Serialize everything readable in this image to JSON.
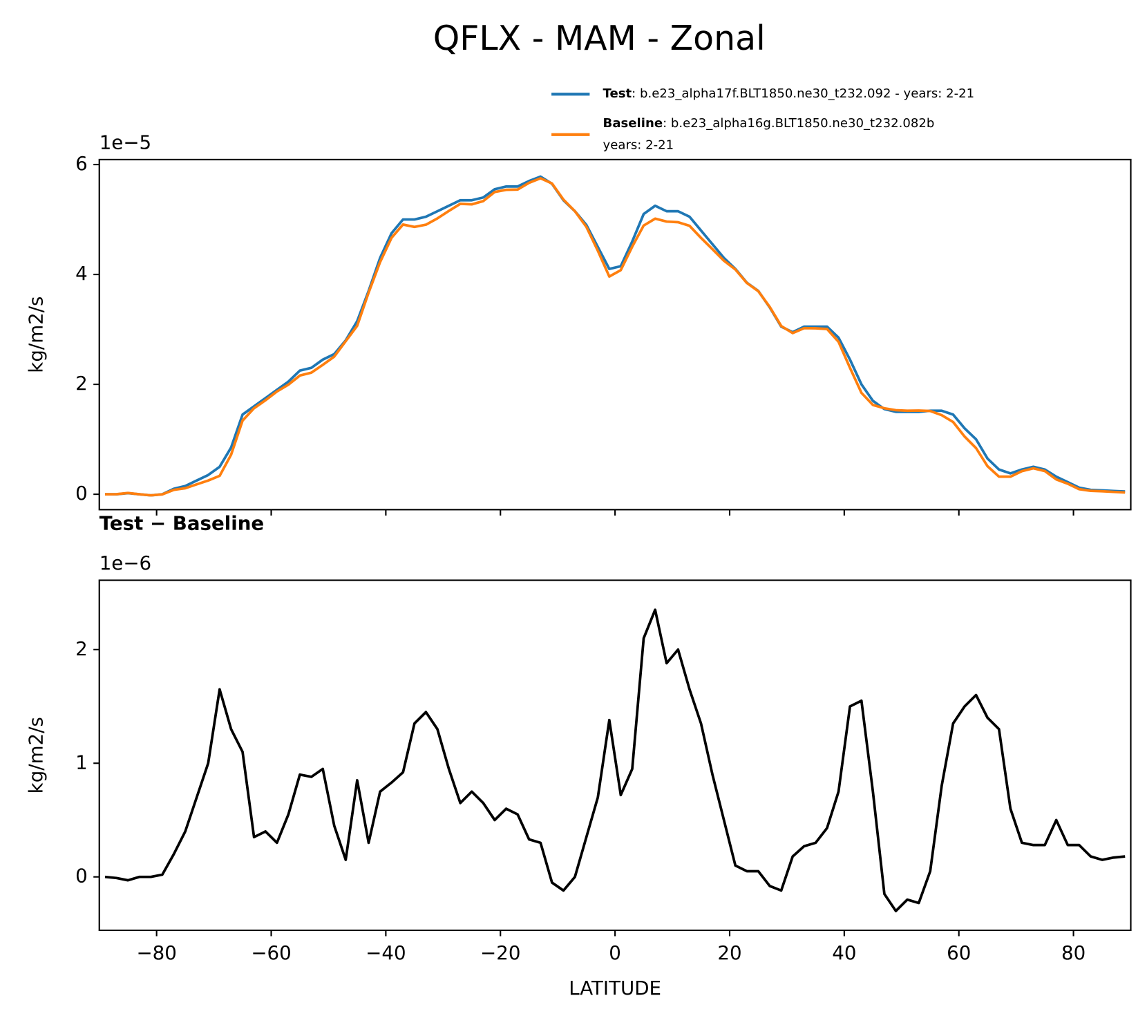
{
  "title": "QFLX - MAM - Zonal",
  "chart_data": [
    {
      "type": "line",
      "ylabel": "kg/m2/s",
      "offset_label": "1e−5",
      "legend_loc": "upper right",
      "xlim": [
        -90,
        90
      ],
      "ylim": [
        -0.28,
        6.09
      ],
      "xticks": [
        -80,
        -60,
        -40,
        -20,
        0,
        20,
        40,
        60,
        80
      ],
      "yticks": [
        0,
        2,
        4,
        6
      ],
      "x": [
        -89,
        -87,
        -85,
        -83,
        -81,
        -79,
        -77,
        -75,
        -73,
        -71,
        -69,
        -67,
        -65,
        -63,
        -61,
        -59,
        -57,
        -55,
        -53,
        -51,
        -49,
        -47,
        -45,
        -43,
        -41,
        -39,
        -37,
        -35,
        -33,
        -31,
        -29,
        -27,
        -25,
        -23,
        -21,
        -19,
        -17,
        -15,
        -13,
        -11,
        -9,
        -7,
        -5,
        -3,
        -1,
        1,
        3,
        5,
        7,
        9,
        11,
        13,
        15,
        17,
        19,
        21,
        23,
        25,
        27,
        29,
        31,
        33,
        35,
        37,
        39,
        41,
        43,
        45,
        47,
        49,
        51,
        53,
        55,
        57,
        59,
        61,
        63,
        65,
        67,
        69,
        71,
        73,
        75,
        77,
        79,
        81,
        83,
        85,
        87,
        89
      ],
      "series": [
        {
          "name": "Test",
          "legend_text": [
            ": b.e23_alpha17f.BLT1850.ne30_t232.092 - years: 2-21"
          ],
          "color": "#1f77b4",
          "values": [
            0.0,
            0.0,
            0.02,
            0.0,
            -0.02,
            0.0,
            0.1,
            0.15,
            0.25,
            0.35,
            0.5,
            0.85,
            1.45,
            1.6,
            1.75,
            1.9,
            2.05,
            2.25,
            2.3,
            2.45,
            2.55,
            2.8,
            3.15,
            3.7,
            4.3,
            4.75,
            5.0,
            5.0,
            5.05,
            5.15,
            5.25,
            5.35,
            5.35,
            5.4,
            5.55,
            5.6,
            5.6,
            5.7,
            5.78,
            5.65,
            5.35,
            5.15,
            4.9,
            4.5,
            4.1,
            4.15,
            4.6,
            5.1,
            5.25,
            5.15,
            5.15,
            5.05,
            4.8,
            4.55,
            4.3,
            4.1,
            3.85,
            3.7,
            3.4,
            3.05,
            2.95,
            3.05,
            3.05,
            3.05,
            2.85,
            2.45,
            2.0,
            1.7,
            1.55,
            1.5,
            1.5,
            1.5,
            1.52,
            1.52,
            1.45,
            1.2,
            1.0,
            0.65,
            0.45,
            0.38,
            0.45,
            0.5,
            0.45,
            0.32,
            0.22,
            0.12,
            0.08,
            0.07,
            0.06,
            0.05
          ]
        },
        {
          "name": "Baseline",
          "legend_text": [
            ": b.e23_alpha16g.BLT1850.ne30_t232.082b",
            "years: 2-21"
          ],
          "color": "#ff7f0e",
          "values": [
            0.0,
            0.001,
            0.023,
            0.0,
            -0.02,
            -0.002,
            0.08,
            0.11,
            0.18,
            0.25,
            0.335,
            0.72,
            1.34,
            1.565,
            1.71,
            1.87,
            1.995,
            2.16,
            2.212,
            2.355,
            2.505,
            2.785,
            3.065,
            3.67,
            4.225,
            4.667,
            4.908,
            4.865,
            4.905,
            5.02,
            5.155,
            5.285,
            5.275,
            5.335,
            5.5,
            5.54,
            5.545,
            5.667,
            5.75,
            5.655,
            5.362,
            5.15,
            4.865,
            4.43,
            3.962,
            4.078,
            4.505,
            4.89,
            5.015,
            4.962,
            4.95,
            4.885,
            4.665,
            4.46,
            4.25,
            4.09,
            3.845,
            3.695,
            3.408,
            3.062,
            2.932,
            3.023,
            3.02,
            3.007,
            2.775,
            2.3,
            1.845,
            1.625,
            1.565,
            1.53,
            1.52,
            1.523,
            1.515,
            1.44,
            1.315,
            1.05,
            0.84,
            0.51,
            0.32,
            0.32,
            0.42,
            0.472,
            0.422,
            0.27,
            0.192,
            0.092,
            0.062,
            0.055,
            0.043,
            0.032
          ]
        }
      ]
    },
    {
      "type": "line",
      "title": "Test − Baseline",
      "ylabel": "kg/m2/s",
      "offset_label": "1e−6",
      "xlabel": "LATITUDE",
      "xlim": [
        -90,
        90
      ],
      "ylim": [
        -0.47,
        2.61
      ],
      "xticks": [
        {
          "value": -80,
          "label": "−80"
        },
        {
          "value": -60,
          "label": "−60"
        },
        {
          "value": -40,
          "label": "−40"
        },
        {
          "value": -20,
          "label": "−20"
        },
        0,
        20,
        40,
        60,
        80
      ],
      "yticks": [
        0,
        1,
        2
      ],
      "x": [
        -89,
        -87,
        -85,
        -83,
        -81,
        -79,
        -77,
        -75,
        -73,
        -71,
        -69,
        -67,
        -65,
        -63,
        -61,
        -59,
        -57,
        -55,
        -53,
        -51,
        -49,
        -47,
        -45,
        -43,
        -41,
        -39,
        -37,
        -35,
        -33,
        -31,
        -29,
        -27,
        -25,
        -23,
        -21,
        -19,
        -17,
        -15,
        -13,
        -11,
        -9,
        -7,
        -5,
        -3,
        -1,
        1,
        3,
        5,
        7,
        9,
        11,
        13,
        15,
        17,
        19,
        21,
        23,
        25,
        27,
        29,
        31,
        33,
        35,
        37,
        39,
        41,
        43,
        45,
        47,
        49,
        51,
        53,
        55,
        57,
        59,
        61,
        63,
        65,
        67,
        69,
        71,
        73,
        75,
        77,
        79,
        81,
        83,
        85,
        87,
        89
      ],
      "series": [
        {
          "color": "#000000",
          "values": [
            0.0,
            -0.01,
            -0.03,
            0.0,
            0.0,
            0.02,
            0.2,
            0.4,
            0.7,
            1.0,
            1.65,
            1.3,
            1.1,
            0.35,
            0.4,
            0.3,
            0.55,
            0.9,
            0.88,
            0.95,
            0.45,
            0.15,
            0.85,
            0.3,
            0.75,
            0.83,
            0.92,
            1.35,
            1.45,
            1.3,
            0.95,
            0.65,
            0.75,
            0.65,
            0.5,
            0.6,
            0.55,
            0.33,
            0.3,
            -0.05,
            -0.12,
            0.0,
            0.35,
            0.7,
            1.38,
            0.72,
            0.95,
            2.1,
            2.35,
            1.88,
            2.0,
            1.65,
            1.35,
            0.9,
            0.5,
            0.1,
            0.05,
            0.05,
            -0.08,
            -0.12,
            0.18,
            0.27,
            0.3,
            0.43,
            0.75,
            1.5,
            1.55,
            0.75,
            -0.15,
            -0.3,
            -0.2,
            -0.23,
            0.05,
            0.8,
            1.35,
            1.5,
            1.6,
            1.4,
            1.3,
            0.6,
            0.3,
            0.28,
            0.28,
            0.5,
            0.28,
            0.28,
            0.18,
            0.15,
            0.17,
            0.18
          ]
        }
      ]
    }
  ]
}
